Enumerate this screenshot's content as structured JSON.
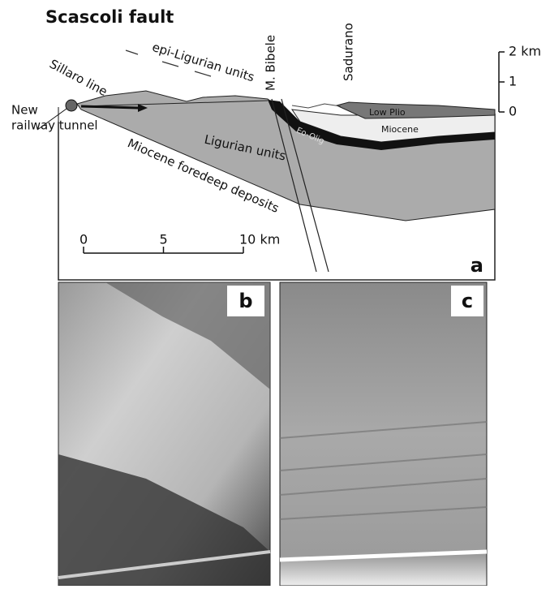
{
  "title": "Scascoli fault",
  "section": {
    "labels": {
      "sillaro": "Sillaro line",
      "epi": "epi-Ligurian units",
      "bibele": "M. Bibele",
      "sadurano": "Sadurano",
      "tunnel_1": "New",
      "tunnel_2": "railway tunnel",
      "ligurian": "Ligurian units",
      "foredeep": "Miocene foredeep deposits",
      "low_plio": "Low Plio",
      "miocene": "Miocene",
      "eo_olig": "Eo-Olig"
    },
    "panel": "a",
    "scale_bar": {
      "xlim": [
        0,
        10
      ],
      "xticks": [
        0,
        5,
        {
          "value": 10,
          "label": "10 km"
        }
      ]
    },
    "elevation": {
      "ylim": [
        0,
        2
      ],
      "yticks": [
        0,
        1,
        {
          "value": 2,
          "label": "2 km"
        }
      ]
    }
  },
  "photo_b": {
    "panel": "b"
  },
  "photo_c": {
    "panel": "c"
  }
}
